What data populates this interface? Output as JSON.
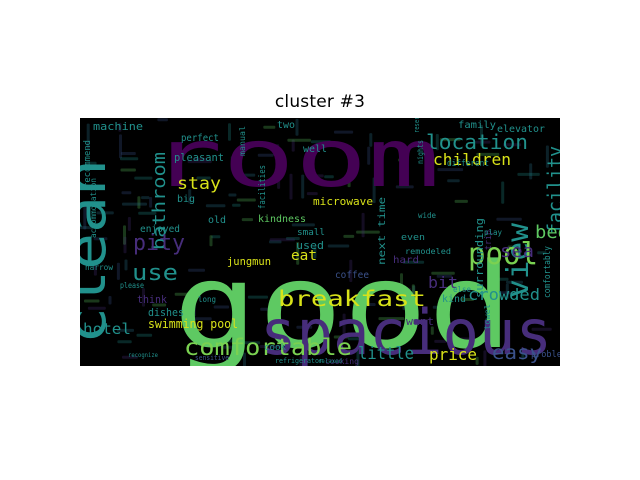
{
  "figure": {
    "title": "cluster  #3"
  },
  "colors": {
    "background": "#000000",
    "green": "#5ec962",
    "light_green": "#7ad151",
    "yellow": "#d8e219",
    "teal": "#21918c",
    "blue_teal": "#2a788e",
    "purple": "#440154",
    "violet": "#472d7b",
    "indigo": "#3b528b"
  },
  "words": [
    {
      "text": "good"
    },
    {
      "text": "room"
    },
    {
      "text": "clean"
    },
    {
      "text": "spacious"
    },
    {
      "text": "breakfast"
    },
    {
      "text": "comfortable"
    },
    {
      "text": "view"
    },
    {
      "text": "pool"
    },
    {
      "text": "location"
    },
    {
      "text": "facility"
    },
    {
      "text": "bathroom"
    },
    {
      "text": "use"
    },
    {
      "text": "pity"
    },
    {
      "text": "stay"
    },
    {
      "text": "hotel"
    },
    {
      "text": "children"
    },
    {
      "text": "crowded"
    },
    {
      "text": "little"
    },
    {
      "text": "price"
    },
    {
      "text": "easy"
    },
    {
      "text": "bed"
    },
    {
      "text": "sea"
    },
    {
      "text": "bit"
    },
    {
      "text": "swimming pool"
    },
    {
      "text": "machine"
    },
    {
      "text": "family"
    },
    {
      "text": "elevator"
    },
    {
      "text": "pleasant"
    },
    {
      "text": "microwave"
    },
    {
      "text": "kindness"
    },
    {
      "text": "enjoyed"
    },
    {
      "text": "jungmun"
    },
    {
      "text": "eat"
    },
    {
      "text": "used"
    },
    {
      "text": "dishes"
    },
    {
      "text": "think"
    },
    {
      "text": "want"
    },
    {
      "text": "kind"
    },
    {
      "text": "surrounding"
    },
    {
      "text": "next time"
    },
    {
      "text": "construction"
    },
    {
      "text": "recommend"
    },
    {
      "text": "perfect"
    },
    {
      "text": "well"
    },
    {
      "text": "two"
    },
    {
      "text": "small"
    },
    {
      "text": "coffee"
    },
    {
      "text": "cook"
    },
    {
      "text": "even"
    },
    {
      "text": "hard"
    },
    {
      "text": "comfortably"
    },
    {
      "text": "problem"
    },
    {
      "text": "old"
    },
    {
      "text": "big"
    },
    {
      "text": "facilities"
    },
    {
      "text": "accommodation"
    },
    {
      "text": "trip"
    },
    {
      "text": "remodeled"
    },
    {
      "text": "different"
    },
    {
      "text": "manual"
    },
    {
      "text": "refrigerator"
    },
    {
      "text": "cooking"
    },
    {
      "text": "long"
    },
    {
      "text": "else"
    },
    {
      "text": "towel"
    },
    {
      "text": "narrow"
    },
    {
      "text": "nights"
    },
    {
      "text": "play"
    },
    {
      "text": "wide"
    },
    {
      "text": "please"
    },
    {
      "text": "sensitive"
    },
    {
      "text": "reservation"
    },
    {
      "text": "recognize"
    },
    {
      "text": "relaxed"
    }
  ]
}
